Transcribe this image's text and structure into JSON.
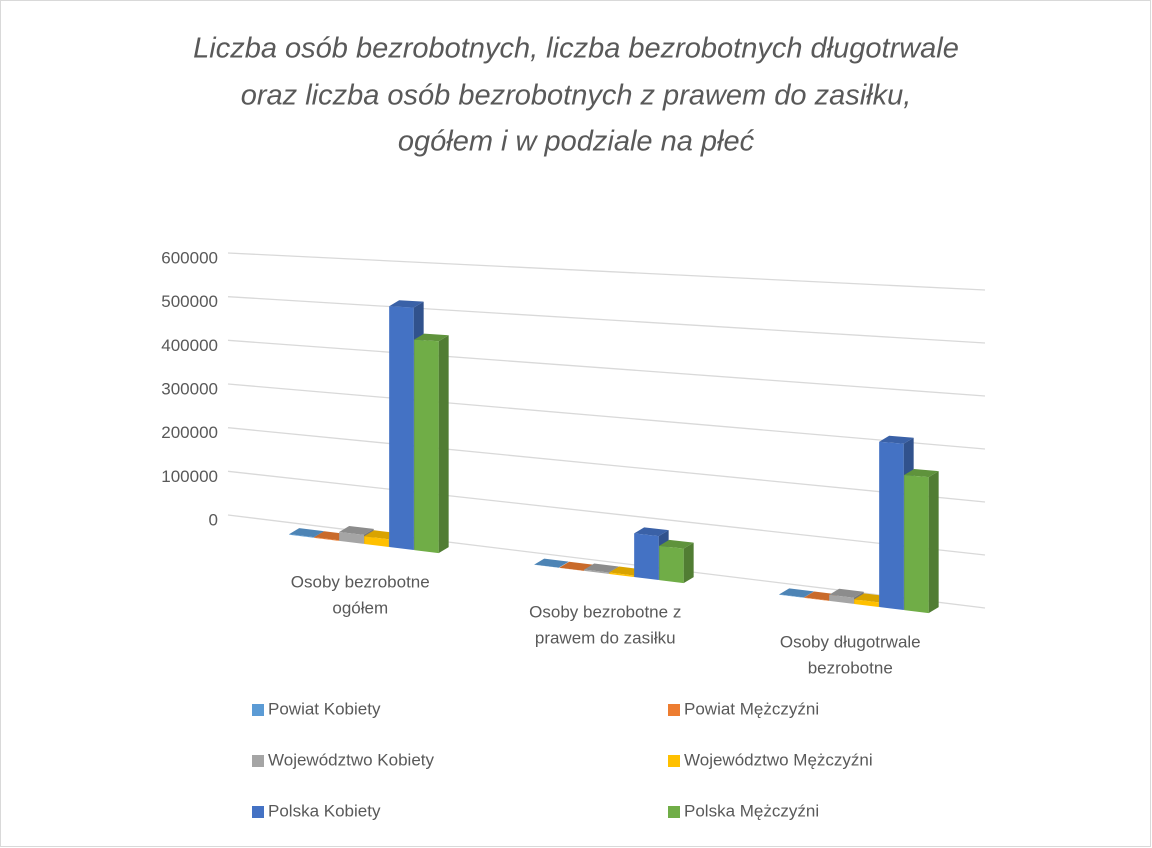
{
  "chart_data": {
    "type": "bar3d",
    "title": [
      "Liczba osób bezrobotnych, liczba bezrobotnych długotrwale",
      "oraz liczba osób bezrobotnych z prawem do zasiłku,",
      "ogółem i w podziale na płeć"
    ],
    "categories": [
      "Osoby bezrobotne ogółem",
      "Osoby bezrobotne z prawem do zasiłku",
      "Osoby długotrwale bezrobotne"
    ],
    "series": [
      {
        "name": "Powiat Kobiety",
        "color": "#5b9bd5",
        "values": [
          1500,
          250,
          900
        ]
      },
      {
        "name": "Powiat Mężczyźni",
        "color": "#ed7d31",
        "values": [
          1400,
          250,
          800
        ]
      },
      {
        "name": "Województwo Kobiety",
        "color": "#a5a5a5",
        "values": [
          20000,
          3000,
          12000
        ]
      },
      {
        "name": "Województwo Mężczyźni",
        "color": "#ffc000",
        "values": [
          17000,
          3000,
          9000
        ]
      },
      {
        "name": "Polska Kobiety",
        "color": "#4472c4",
        "values": [
          530000,
          90000,
          320000
        ]
      },
      {
        "name": "Polska Mężczyźni",
        "color": "#70ad47",
        "values": [
          460000,
          70000,
          260000
        ]
      }
    ],
    "ylim": [
      0,
      600000
    ],
    "yticks": [
      0,
      100000,
      200000,
      300000,
      400000,
      500000,
      600000
    ],
    "grid": true,
    "legend": "bottom"
  }
}
